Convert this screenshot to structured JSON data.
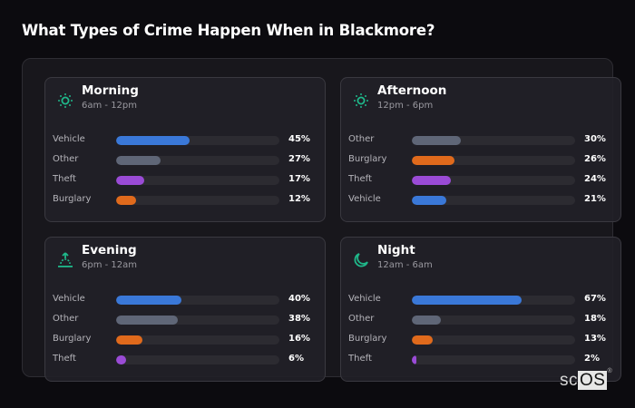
{
  "page": {
    "title": "What Types of Crime Happen When in Blackmore?"
  },
  "colors": {
    "Vehicle": "#3a78d8",
    "Other": "#5f6677",
    "Theft": "#9a4bd6",
    "Burglary": "#e06a1c",
    "icon_accent": "#1fb88a"
  },
  "cards": [
    {
      "title": "Morning",
      "subtitle": "6am - 12pm",
      "icon": "sun-icon",
      "rows": [
        {
          "label": "Vehicle",
          "value": 45,
          "display": "45%"
        },
        {
          "label": "Other",
          "value": 27,
          "display": "27%"
        },
        {
          "label": "Theft",
          "value": 17,
          "display": "17%"
        },
        {
          "label": "Burglary",
          "value": 12,
          "display": "12%"
        }
      ]
    },
    {
      "title": "Afternoon",
      "subtitle": "12pm - 6pm",
      "icon": "sun-icon",
      "rows": [
        {
          "label": "Other",
          "value": 30,
          "display": "30%"
        },
        {
          "label": "Burglary",
          "value": 26,
          "display": "26%"
        },
        {
          "label": "Theft",
          "value": 24,
          "display": "24%"
        },
        {
          "label": "Vehicle",
          "value": 21,
          "display": "21%"
        }
      ]
    },
    {
      "title": "Evening",
      "subtitle": "6pm - 12am",
      "icon": "sunset-icon",
      "rows": [
        {
          "label": "Vehicle",
          "value": 40,
          "display": "40%"
        },
        {
          "label": "Other",
          "value": 38,
          "display": "38%"
        },
        {
          "label": "Burglary",
          "value": 16,
          "display": "16%"
        },
        {
          "label": "Theft",
          "value": 6,
          "display": "6%"
        }
      ]
    },
    {
      "title": "Night",
      "subtitle": "12am - 6am",
      "icon": "moon-icon",
      "rows": [
        {
          "label": "Vehicle",
          "value": 67,
          "display": "67%"
        },
        {
          "label": "Other",
          "value": 18,
          "display": "18%"
        },
        {
          "label": "Burglary",
          "value": 13,
          "display": "13%"
        },
        {
          "label": "Theft",
          "value": 2,
          "display": "2%"
        }
      ]
    }
  ],
  "brand": {
    "prefix": "sc",
    "highlight": "OS",
    "mark": "®"
  }
}
